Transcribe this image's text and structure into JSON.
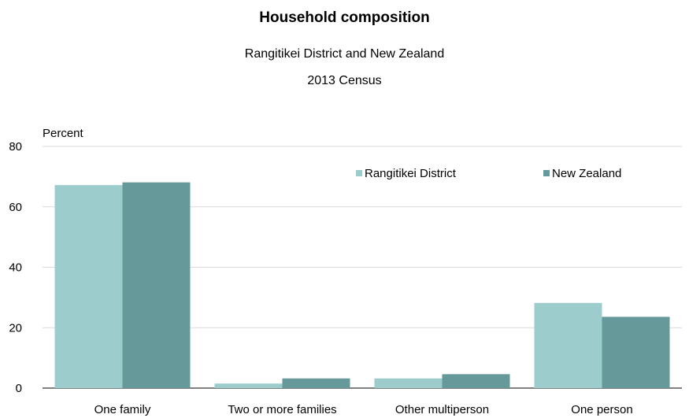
{
  "chart_data": {
    "type": "bar",
    "title": "Household composition",
    "subtitle": [
      "Rangitikei District and New Zealand",
      "2013 Census"
    ],
    "ylabel": "Percent",
    "xlabel": "",
    "ylim": [
      0,
      80
    ],
    "yticks": [
      0,
      20,
      40,
      60,
      80
    ],
    "categories": [
      "One family",
      "Two or more families",
      "Other multiperson",
      "One person"
    ],
    "series": [
      {
        "name": "Rangitikei District",
        "color": "#9ccccc",
        "values": [
          67.2,
          1.5,
          3.2,
          28.2
        ]
      },
      {
        "name": "New Zealand",
        "color": "#669999",
        "values": [
          68.1,
          3.2,
          4.6,
          23.6
        ]
      }
    ],
    "grid": true,
    "legend": "top-right"
  }
}
